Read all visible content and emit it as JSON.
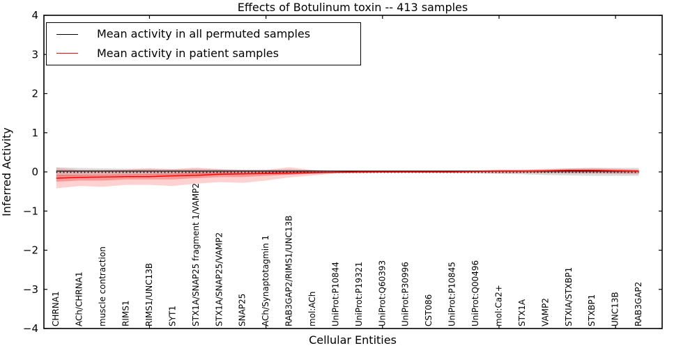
{
  "title": "Effects of Botulinum toxin -- 413 samples",
  "axes": {
    "ylabel": "Inferred Activity",
    "xlabel": "Cellular Entities",
    "ylim": [
      -4,
      4
    ],
    "xlim": [
      0.47,
      27
    ],
    "y_ticks": [
      4,
      3,
      2,
      1,
      0,
      -1,
      -2,
      -3,
      -4
    ],
    "x_major_ticks": [
      5,
      10,
      15,
      20,
      25
    ],
    "grid": "off"
  },
  "legend": {
    "position": "upper-left",
    "entries": [
      {
        "label": "Mean activity in all permuted samples",
        "color": "#000000"
      },
      {
        "label": "Mean activity in patient samples",
        "color": "#ff0000"
      }
    ]
  },
  "colors": {
    "permuted_line": "#000000",
    "patient_line": "#ff0000",
    "permuted_band": "rgba(0,0,0,0.14)",
    "patient_band_outer": "rgba(255,0,0,0.18)",
    "patient_band_inner": "rgba(255,0,0,0.28)",
    "reference_line": "#000000",
    "axis": "#000000"
  },
  "chart_data": {
    "type": "line",
    "title": "Effects of Botulinum toxin -- 413 samples",
    "xlabel": "Cellular Entities",
    "ylabel": "Inferred Activity",
    "ylim": [
      -4,
      4
    ],
    "legend_position": "upper-left",
    "grid": false,
    "categories": [
      "CHRNA1",
      "ACh/CHRNA1",
      "muscle contraction",
      "RIMS1",
      "RIMS1/UNC13B",
      "SYT1",
      "STX1A/SNAP25 fragment 1/VAMP2",
      "STX1A/SNAP25/VAMP2",
      "SNAP25",
      "ACh/Synaptotagmin 1",
      "RAB3GAP2/RIMS1/UNC13B",
      "mol:ACh",
      "UniProt:P10844",
      "UniProt:P19321",
      "UniProt:Q60393",
      "UniProt:P30996",
      "CST086",
      "UniProt:P10845",
      "UniProt:Q00496",
      "mol:Ca2+",
      "STX1A",
      "VAMP2",
      "STXIA/STXBP1",
      "STXBP1",
      "UNC13B",
      "RAB3GAP2"
    ],
    "x": [
      1,
      2,
      3,
      4,
      5,
      6,
      7,
      8,
      9,
      10,
      11,
      12,
      13,
      14,
      15,
      16,
      17,
      18,
      19,
      20,
      21,
      22,
      23,
      24,
      25,
      26
    ],
    "series": [
      {
        "name": "Mean activity in all permuted samples",
        "color": "#000000",
        "style": "solid",
        "values": [
          0.02,
          0.02,
          0.02,
          0.02,
          0.02,
          0.02,
          0.02,
          0.02,
          0.02,
          0.02,
          0.02,
          0.02,
          0.02,
          0.02,
          0.02,
          0.02,
          0.02,
          0.02,
          0.02,
          0.02,
          0.02,
          0.02,
          0.02,
          0.02,
          0.02,
          0.02
        ]
      },
      {
        "name": "Mean activity in patient samples",
        "color": "#ff0000",
        "style": "solid",
        "values": [
          -0.16,
          -0.14,
          -0.13,
          -0.12,
          -0.12,
          -0.1,
          -0.09,
          -0.06,
          -0.05,
          -0.04,
          -0.03,
          -0.02,
          -0.01,
          0,
          0,
          0,
          0,
          0,
          0.01,
          0.02,
          0.02,
          0.03,
          0.04,
          0.04,
          0.03,
          0.02
        ]
      }
    ],
    "bands": [
      {
        "name": "permuted-samples-band",
        "color": "rgba(0,0,0,0.14)",
        "upper": [
          0.12,
          0.1,
          0.09,
          0.08,
          0.08,
          0.07,
          0.08,
          0.07,
          0.06,
          0.06,
          0.07,
          0.05,
          0.03,
          0.03,
          0.02,
          0.02,
          0.02,
          0.03,
          0.04,
          0.05,
          0.06,
          0.08,
          0.09,
          0.1,
          0.1,
          0.1
        ],
        "lower": [
          -0.12,
          -0.1,
          -0.09,
          -0.08,
          -0.08,
          -0.07,
          -0.08,
          -0.07,
          -0.06,
          -0.06,
          -0.07,
          -0.05,
          -0.03,
          -0.03,
          -0.02,
          -0.02,
          -0.02,
          -0.03,
          -0.04,
          -0.05,
          -0.06,
          -0.08,
          -0.09,
          -0.1,
          -0.1,
          -0.1
        ]
      },
      {
        "name": "patient-samples-band-outer",
        "color": "rgba(255,0,0,0.18)",
        "upper": [
          0.1,
          0.05,
          0.05,
          0.06,
          0.09,
          0.07,
          0.11,
          0.07,
          0.05,
          0.05,
          0.12,
          0.05,
          0.02,
          0.02,
          0.01,
          0.01,
          0.01,
          0.02,
          0.03,
          0.06,
          0.05,
          0.06,
          0.09,
          0.1,
          0.08,
          0.06
        ],
        "lower": [
          -0.42,
          -0.36,
          -0.38,
          -0.33,
          -0.33,
          -0.36,
          -0.3,
          -0.26,
          -0.28,
          -0.22,
          -0.14,
          -0.09,
          -0.04,
          -0.03,
          -0.02,
          -0.02,
          -0.02,
          -0.02,
          -0.02,
          -0.03,
          -0.03,
          -0.03,
          -0.04,
          -0.04,
          -0.05,
          -0.06
        ]
      },
      {
        "name": "patient-samples-band-inner",
        "color": "rgba(255,0,0,0.28)",
        "upper": [
          -0.07,
          -0.07,
          -0.07,
          -0.06,
          -0.05,
          -0.04,
          -0.02,
          -0.01,
          -0.01,
          0.0,
          0.02,
          0.0,
          0.0,
          0.01,
          0.0,
          0.0,
          0.0,
          0.01,
          0.02,
          0.03,
          0.03,
          0.04,
          0.06,
          0.06,
          0.05,
          0.04
        ],
        "lower": [
          -0.25,
          -0.22,
          -0.22,
          -0.19,
          -0.19,
          -0.19,
          -0.16,
          -0.13,
          -0.13,
          -0.1,
          -0.07,
          -0.04,
          -0.02,
          -0.01,
          -0.01,
          -0.01,
          -0.01,
          -0.01,
          -0.01,
          -0.01,
          -0.01,
          -0.01,
          -0.01,
          -0.01,
          -0.02,
          -0.02
        ]
      }
    ],
    "reference_line": {
      "y": -0.01,
      "style": "dotted",
      "color": "#000000"
    }
  }
}
